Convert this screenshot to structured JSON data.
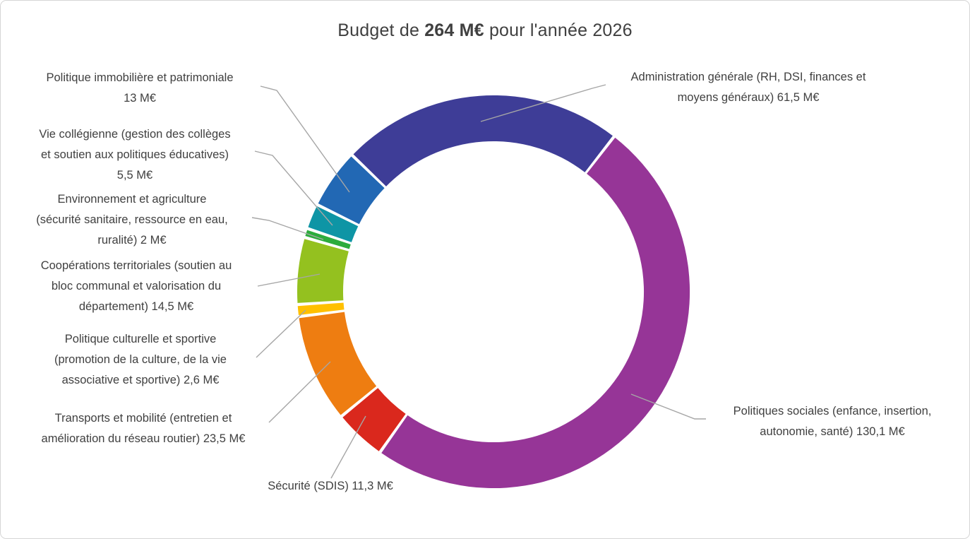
{
  "title": {
    "prefix": "Budget de ",
    "amount": "264 M€",
    "suffix": " pour l'année 2026"
  },
  "chart_data": {
    "type": "donut",
    "title": "Budget de 264 M€ pour l'année 2026",
    "unit": "M€",
    "total_value": 264,
    "total_display": "264 M€",
    "start_angle_deg": -46,
    "legend_position": "callouts",
    "segments": [
      {
        "id": "administration",
        "label": "Administration générale (RH, DSI, finances et moyens généraux)",
        "value": 61.5,
        "display": "61,5 M€",
        "color": "#3E3D97"
      },
      {
        "id": "sociales",
        "label": "Politiques sociales (enfance, insertion, autonomie, santé)",
        "value": 130.1,
        "display": "130,1 M€",
        "color": "#963597"
      },
      {
        "id": "securite",
        "label": "Sécurité (SDIS)",
        "value": 11.3,
        "display": "11,3 M€",
        "color": "#DA281D"
      },
      {
        "id": "transports",
        "label": "Transports et mobilité (entretien et amélioration du réseau routier)",
        "value": 23.5,
        "display": "23,5 M€",
        "color": "#EE7D11"
      },
      {
        "id": "culturelle",
        "label": "Politique culturelle et sportive (promotion de la culture, de la vie associative et sportive)",
        "value": 2.6,
        "display": "2,6 M€",
        "color": "#FFC000"
      },
      {
        "id": "cooperations",
        "label": "Coopérations territoriales (soutien au bloc communal et valorisation du département)",
        "value": 14.5,
        "display": "14,5 M€",
        "color": "#94C11F"
      },
      {
        "id": "environnement",
        "label": "Environnement et agriculture (sécurité sanitaire, ressource en eau, ruralité)",
        "value": 2.0,
        "display": "2 M€",
        "color": "#2CAC3C"
      },
      {
        "id": "vie-collegienne",
        "label": "Vie collégienne (gestion des collèges et soutien aux politiques éducatives)",
        "value": 5.5,
        "display": "5,5 M€",
        "color": "#0E95A5"
      },
      {
        "id": "immobiliere",
        "label": "Politique immobilière et patrimoniale",
        "value": 13.0,
        "display": "13 M€",
        "color": "#2268B4"
      }
    ]
  },
  "callouts": [
    {
      "id": "immobiliere",
      "lines": [
        "Politique immobilière et patrimoniale",
        "13 M€"
      ]
    },
    {
      "id": "vie-collegienne",
      "lines": [
        "Vie collégienne (gestion des collèges",
        "et soutien aux politiques éducatives)",
        "5,5 M€"
      ]
    },
    {
      "id": "environnement",
      "lines": [
        "Environnement et agriculture",
        "(sécurité sanitaire, ressource en eau,",
        "ruralité) 2 M€"
      ]
    },
    {
      "id": "cooperations",
      "lines": [
        "Coopérations territoriales (soutien au",
        "bloc communal et valorisation du",
        "département) 14,5 M€"
      ]
    },
    {
      "id": "culturelle",
      "lines": [
        "Politique culturelle et sportive",
        "(promotion de la culture, de la vie",
        "associative et sportive) 2,6 M€"
      ]
    },
    {
      "id": "transports",
      "lines": [
        "Transports et mobilité (entretien et",
        "amélioration du réseau routier) 23,5 M€"
      ]
    },
    {
      "id": "securite",
      "lines": [
        "Sécurité (SDIS) 11,3 M€"
      ]
    },
    {
      "id": "administration",
      "lines": [
        "Administration générale (RH, DSI, finances et",
        "moyens généraux) 61,5 M€"
      ]
    },
    {
      "id": "sociales",
      "lines": [
        "Politiques sociales (enfance, insertion,",
        "autonomie, santé) 130,1 M€"
      ]
    }
  ],
  "colors": {
    "text": "#404040",
    "leader_line": "#A6A6A6",
    "frame_border": "#D6D6D6",
    "background": "#FFFFFF"
  }
}
